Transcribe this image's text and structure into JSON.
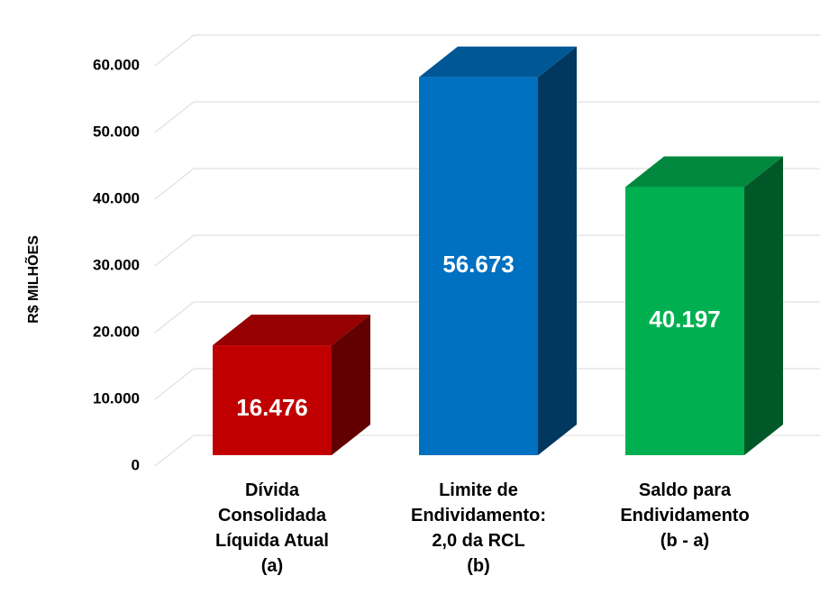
{
  "chart_data": {
    "type": "bar3d",
    "y_axis_label": "R$ MILHÕES",
    "categories": [
      "Dívida\nConsolidada\nLíquida Atual\n(a)",
      "Limite de\nEndividamento:\n2,0 da RCL\n(b)",
      "Saldo para\nEndividamento\n(b - a)"
    ],
    "values": [
      16476,
      56673,
      40197
    ],
    "value_labels": [
      "16.476",
      "56.673",
      "40.197"
    ],
    "colors": [
      "#c00000",
      "#0070c0",
      "#00b050"
    ],
    "ylim": [
      0,
      60000
    ],
    "yticks": [
      0,
      {
        "value": 10000,
        "label": "10.000"
      },
      {
        "value": 20000,
        "label": "20.000"
      },
      {
        "value": 30000,
        "label": "30.000"
      },
      {
        "value": 40000,
        "label": "40.000"
      },
      {
        "value": 50000,
        "label": "50.000"
      },
      {
        "value": 60000,
        "label": "60.000"
      }
    ],
    "grid": true
  }
}
